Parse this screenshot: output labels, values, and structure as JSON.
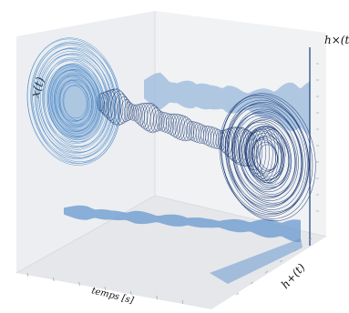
{
  "chart_data": {
    "type": "3d-line",
    "title": "",
    "xlabel": "temps [s]",
    "ylabel": "h+(t)",
    "zlabel": "x(t)",
    "zlabel_right": "h×(t)",
    "axis_labels_math": {
      "z_left": "x(t)",
      "y_front": "h+(t)",
      "z_right": "h×(t)"
    },
    "grid": false,
    "legend": "none",
    "series": [
      {
        "role": "3D helix trajectory along time axis with varying envelope",
        "color": "#0b2d6b",
        "envelope_profile": [
          0.3,
          0.55,
          0.2,
          0.45,
          0.25,
          0.4,
          0.2,
          0.35,
          0.55,
          0.85,
          0.95
        ]
      },
      {
        "role": "projection onto back wall (h×)",
        "color": "#8fb0d8"
      },
      {
        "role": "projection onto floor (h+)",
        "color": "#5f93cc"
      },
      {
        "role": "projection onto left wall (x(t) cross-section)",
        "color": "#3b7fc4"
      },
      {
        "role": "projection onto right wall",
        "color": "#17356f"
      }
    ],
    "colors": {
      "helix": "#0b2d6b",
      "left_wall_rings": "#3b7fc4",
      "back_wall": "#9ab8dc",
      "floor": "#5f93cc",
      "right_wall_rings": "#1b3c78"
    }
  }
}
